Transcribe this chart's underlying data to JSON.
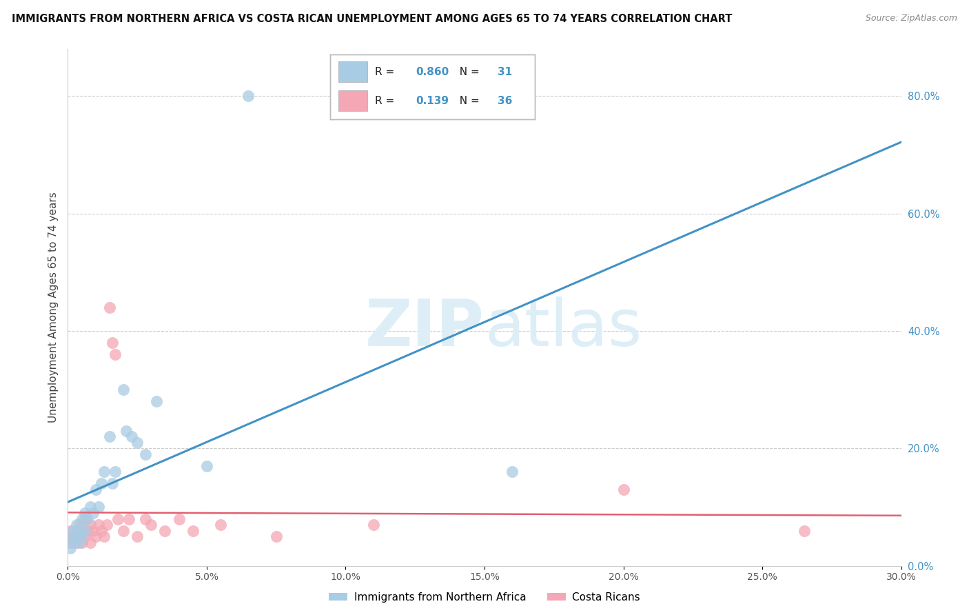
{
  "title": "IMMIGRANTS FROM NORTHERN AFRICA VS COSTA RICAN UNEMPLOYMENT AMONG AGES 65 TO 74 YEARS CORRELATION CHART",
  "source": "Source: ZipAtlas.com",
  "ylabel": "Unemployment Among Ages 65 to 74 years",
  "xlim": [
    0.0,
    0.3
  ],
  "ylim": [
    0.0,
    0.88
  ],
  "blue_R": 0.86,
  "blue_N": 31,
  "pink_R": 0.139,
  "pink_N": 36,
  "blue_color": "#a8cce4",
  "pink_color": "#f4a7b4",
  "blue_line_color": "#4292c6",
  "pink_line_color": "#e06070",
  "right_tick_color": "#4292c6",
  "watermark_color": "#ddeef7",
  "blue_scatter_x": [
    0.001,
    0.001,
    0.002,
    0.002,
    0.003,
    0.003,
    0.004,
    0.004,
    0.005,
    0.005,
    0.006,
    0.006,
    0.007,
    0.008,
    0.009,
    0.01,
    0.011,
    0.012,
    0.013,
    0.015,
    0.016,
    0.017,
    0.02,
    0.021,
    0.023,
    0.025,
    0.028,
    0.032,
    0.05,
    0.065,
    0.16
  ],
  "blue_scatter_y": [
    0.03,
    0.05,
    0.04,
    0.06,
    0.05,
    0.07,
    0.04,
    0.06,
    0.05,
    0.08,
    0.06,
    0.09,
    0.08,
    0.1,
    0.09,
    0.13,
    0.1,
    0.14,
    0.16,
    0.22,
    0.14,
    0.16,
    0.3,
    0.23,
    0.22,
    0.21,
    0.19,
    0.28,
    0.17,
    0.8,
    0.16
  ],
  "pink_scatter_x": [
    0.001,
    0.001,
    0.002,
    0.003,
    0.004,
    0.004,
    0.005,
    0.005,
    0.006,
    0.006,
    0.007,
    0.008,
    0.008,
    0.009,
    0.01,
    0.011,
    0.012,
    0.013,
    0.014,
    0.015,
    0.016,
    0.017,
    0.018,
    0.02,
    0.022,
    0.025,
    0.028,
    0.03,
    0.035,
    0.04,
    0.045,
    0.055,
    0.075,
    0.11,
    0.2,
    0.265
  ],
  "pink_scatter_y": [
    0.04,
    0.06,
    0.05,
    0.04,
    0.05,
    0.07,
    0.04,
    0.06,
    0.05,
    0.08,
    0.06,
    0.04,
    0.07,
    0.06,
    0.05,
    0.07,
    0.06,
    0.05,
    0.07,
    0.44,
    0.38,
    0.36,
    0.08,
    0.06,
    0.08,
    0.05,
    0.08,
    0.07,
    0.06,
    0.08,
    0.06,
    0.07,
    0.05,
    0.07,
    0.13,
    0.06
  ],
  "blue_line_x": [
    0.0,
    0.3
  ],
  "pink_line_x": [
    0.0,
    0.3
  ],
  "xtick_vals": [
    0.0,
    0.05,
    0.1,
    0.15,
    0.2,
    0.25,
    0.3
  ],
  "ytick_vals": [
    0.0,
    0.2,
    0.4,
    0.6,
    0.8
  ]
}
